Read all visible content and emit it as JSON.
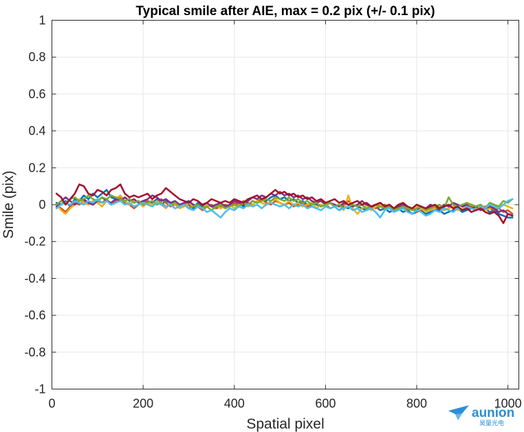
{
  "chart_data": {
    "type": "line",
    "title": "Typical smile after AIE, max = 0.2 pix (+/- 0.1 pix)",
    "xlabel": "Spatial pixel",
    "ylabel": "Smile (pix)",
    "xlim": [
      0,
      1024
    ],
    "ylim": [
      -1,
      1
    ],
    "xticks": [
      0,
      200,
      400,
      600,
      800,
      1000
    ],
    "xtick_labels": [
      "0",
      "200",
      "400",
      "600",
      "800",
      "1000"
    ],
    "yticks": [
      -1,
      -0.8,
      -0.6,
      -0.4,
      -0.2,
      0,
      0.2,
      0.4,
      0.6,
      0.8,
      1
    ],
    "ytick_labels": [
      "-1",
      "-0.8",
      "-0.6",
      "-0.4",
      "-0.2",
      "0",
      "0.2",
      "0.4",
      "0.6",
      "0.8",
      "1"
    ],
    "grid": true,
    "legend": "none",
    "x": [
      10,
      20,
      30,
      40,
      50,
      60,
      70,
      80,
      90,
      100,
      110,
      120,
      130,
      140,
      150,
      160,
      170,
      180,
      190,
      200,
      210,
      220,
      230,
      240,
      250,
      260,
      270,
      280,
      290,
      300,
      310,
      320,
      330,
      340,
      350,
      360,
      370,
      380,
      390,
      400,
      410,
      420,
      430,
      440,
      450,
      460,
      470,
      480,
      490,
      500,
      510,
      520,
      530,
      540,
      550,
      560,
      570,
      580,
      590,
      600,
      610,
      620,
      630,
      640,
      650,
      660,
      670,
      680,
      690,
      700,
      710,
      720,
      730,
      740,
      750,
      760,
      770,
      780,
      790,
      800,
      810,
      820,
      830,
      840,
      850,
      860,
      870,
      880,
      890,
      900,
      910,
      920,
      930,
      940,
      950,
      960,
      970,
      980,
      990,
      1000,
      1010
    ],
    "series": [
      {
        "color": "#0072bd",
        "values": [
          0.01,
          0.0,
          0.02,
          -0.01,
          0.03,
          0.02,
          0.05,
          0.03,
          0.06,
          0.04,
          0.06,
          0.08,
          0.04,
          0.03,
          0.05,
          0.02,
          0.03,
          0.01,
          0.02,
          0.0,
          0.02,
          0.01,
          0.03,
          0.0,
          0.02,
          0.01,
          0.0,
          -0.01,
          0.01,
          0.0,
          -0.02,
          0.01,
          -0.01,
          0.0,
          -0.01,
          -0.02,
          -0.01,
          0.0,
          -0.01,
          0.0,
          0.01,
          -0.01,
          0.0,
          0.02,
          0.01,
          0.03,
          0.02,
          0.04,
          0.05,
          0.03,
          0.04,
          0.02,
          0.03,
          0.01,
          0.02,
          0.0,
          0.01,
          0.0,
          -0.01,
          0.0,
          -0.02,
          -0.01,
          -0.03,
          -0.01,
          -0.02,
          0.0,
          -0.01,
          -0.02,
          -0.03,
          -0.02,
          -0.01,
          -0.03,
          -0.02,
          -0.04,
          -0.03,
          -0.02,
          -0.04,
          -0.03,
          -0.05,
          -0.04,
          -0.03,
          -0.05,
          -0.04,
          -0.02,
          -0.03,
          -0.05,
          -0.04,
          -0.03,
          -0.02,
          -0.04,
          -0.03,
          -0.02,
          -0.01,
          -0.03,
          -0.02,
          -0.04,
          -0.03,
          -0.05,
          -0.06,
          -0.07,
          -0.07
        ]
      },
      {
        "color": "#d95319",
        "values": [
          0.0,
          -0.02,
          -0.04,
          -0.01,
          0.01,
          0.0,
          0.02,
          0.01,
          0.0,
          0.02,
          0.01,
          0.03,
          0.0,
          0.02,
          0.04,
          0.01,
          0.0,
          -0.02,
          0.0,
          0.01,
          0.02,
          0.0,
          0.01,
          0.03,
          0.01,
          -0.01,
          0.0,
          -0.01,
          0.01,
          -0.02,
          0.0,
          -0.01,
          -0.03,
          -0.01,
          0.0,
          -0.02,
          -0.01,
          0.0,
          -0.01,
          0.01,
          0.0,
          0.02,
          0.01,
          0.0,
          0.02,
          0.03,
          0.01,
          0.0,
          0.02,
          0.01,
          0.0,
          0.01,
          -0.01,
          0.0,
          0.01,
          -0.01,
          0.0,
          0.01,
          -0.01,
          0.0,
          0.01,
          0.0,
          -0.01,
          0.0,
          0.02,
          0.0,
          -0.01,
          0.0,
          -0.02,
          -0.01,
          -0.02,
          -0.01,
          0.0,
          -0.02,
          -0.03,
          -0.01,
          -0.02,
          -0.03,
          -0.02,
          -0.04,
          -0.03,
          -0.02,
          -0.03,
          -0.01,
          -0.02,
          -0.03,
          -0.02,
          -0.01,
          -0.02,
          -0.03,
          -0.02,
          -0.01,
          -0.03,
          -0.02,
          -0.01,
          -0.02,
          -0.03,
          -0.02,
          -0.04,
          -0.03,
          -0.05
        ]
      },
      {
        "color": "#edb120",
        "values": [
          0.0,
          -0.03,
          -0.05,
          -0.02,
          0.0,
          0.03,
          0.01,
          0.0,
          0.02,
          0.01,
          -0.01,
          0.02,
          0.01,
          0.03,
          0.05,
          0.02,
          0.0,
          0.02,
          0.01,
          -0.01,
          0.01,
          0.0,
          0.02,
          0.0,
          -0.02,
          0.01,
          0.0,
          -0.02,
          -0.01,
          0.01,
          -0.01,
          0.0,
          -0.02,
          0.0,
          -0.01,
          0.0,
          -0.02,
          -0.01,
          0.0,
          -0.02,
          0.0,
          0.01,
          -0.01,
          0.0,
          0.02,
          0.01,
          0.0,
          0.02,
          0.03,
          0.01,
          0.0,
          0.02,
          0.0,
          0.01,
          -0.01,
          0.0,
          0.01,
          -0.02,
          0.0,
          -0.01,
          0.01,
          -0.01,
          0.0,
          -0.03,
          0.05,
          -0.02,
          -0.05,
          -0.02,
          0.0,
          -0.03,
          -0.01,
          0.0,
          -0.02,
          -0.01,
          -0.03,
          -0.02,
          0.0,
          -0.02,
          -0.03,
          -0.01,
          -0.02,
          -0.04,
          -0.03,
          -0.02,
          -0.01,
          -0.03,
          -0.02,
          -0.01,
          -0.03,
          -0.02,
          -0.01,
          0.0,
          -0.02,
          -0.01,
          -0.03,
          -0.02,
          -0.01,
          -0.02,
          0.0,
          -0.01,
          -0.02
        ]
      },
      {
        "color": "#7e2f8e",
        "values": [
          -0.01,
          0.02,
          0.04,
          0.02,
          0.0,
          0.02,
          0.03,
          0.01,
          0.0,
          0.02,
          0.04,
          0.02,
          0.01,
          0.03,
          0.02,
          0.04,
          0.02,
          0.03,
          0.01,
          0.02,
          0.03,
          0.05,
          0.04,
          0.02,
          0.03,
          0.01,
          0.02,
          0.0,
          0.01,
          0.02,
          0.0,
          -0.01,
          0.0,
          0.01,
          -0.01,
          0.0,
          0.01,
          -0.01,
          0.0,
          0.02,
          0.01,
          0.0,
          0.02,
          0.04,
          0.03,
          0.05,
          0.04,
          0.06,
          0.05,
          0.07,
          0.05,
          0.06,
          0.04,
          0.05,
          0.03,
          0.04,
          0.02,
          0.01,
          0.02,
          0.0,
          0.01,
          0.0,
          -0.01,
          0.01,
          0.0,
          -0.01,
          0.0,
          0.02,
          0.0,
          -0.01,
          0.0,
          0.01,
          -0.01,
          0.0,
          -0.02,
          -0.01,
          0.0,
          -0.01,
          -0.02,
          -0.03,
          -0.01,
          -0.02,
          0.0,
          -0.01,
          -0.02,
          0.0,
          -0.01,
          0.01,
          0.0,
          -0.01,
          0.0,
          -0.02,
          -0.01,
          -0.03,
          -0.02,
          -0.01,
          -0.02,
          -0.04,
          -0.03,
          -0.05,
          -0.06
        ]
      },
      {
        "color": "#77ac30",
        "values": [
          0.0,
          0.02,
          0.01,
          0.03,
          0.04,
          0.02,
          0.03,
          0.05,
          0.03,
          0.02,
          0.04,
          0.03,
          0.05,
          0.04,
          0.03,
          0.02,
          0.03,
          0.01,
          0.02,
          0.0,
          0.01,
          0.02,
          0.0,
          0.01,
          -0.01,
          0.0,
          0.01,
          -0.01,
          0.0,
          -0.02,
          -0.01,
          0.0,
          -0.02,
          -0.01,
          -0.03,
          -0.01,
          0.0,
          -0.02,
          -0.01,
          0.0,
          -0.01,
          0.01,
          0.0,
          0.02,
          0.01,
          0.02,
          0.03,
          0.02,
          0.04,
          0.03,
          0.02,
          0.04,
          0.02,
          0.03,
          0.01,
          0.02,
          0.0,
          0.01,
          -0.01,
          0.0,
          0.01,
          -0.01,
          0.0,
          -0.02,
          -0.01,
          0.0,
          -0.01,
          0.0,
          -0.02,
          -0.01,
          0.0,
          -0.01,
          -0.02,
          -0.01,
          -0.03,
          -0.02,
          -0.01,
          -0.02,
          -0.03,
          -0.02,
          -0.01,
          -0.03,
          -0.02,
          -0.01,
          0.0,
          -0.02,
          0.04,
          0.0,
          -0.01,
          0.0,
          0.01,
          0.0,
          -0.01,
          0.0,
          -0.02,
          0.01,
          0.0,
          -0.01,
          0.02,
          0.01,
          0.03
        ]
      },
      {
        "color": "#4dbeee",
        "values": [
          -0.02,
          0.0,
          0.01,
          0.0,
          0.02,
          0.01,
          0.0,
          0.02,
          0.01,
          0.03,
          0.01,
          0.02,
          0.0,
          0.01,
          0.02,
          0.0,
          0.01,
          -0.01,
          0.0,
          0.01,
          0.0,
          -0.01,
          0.01,
          0.0,
          -0.01,
          0.0,
          -0.02,
          -0.01,
          0.0,
          -0.02,
          -0.03,
          -0.01,
          -0.02,
          -0.04,
          -0.03,
          -0.05,
          -0.07,
          -0.04,
          -0.02,
          -0.03,
          -0.01,
          -0.02,
          0.0,
          -0.01,
          0.0,
          -0.02,
          0.0,
          0.01,
          0.0,
          -0.01,
          0.0,
          -0.02,
          0.0,
          -0.01,
          0.0,
          -0.02,
          -0.01,
          -0.02,
          -0.03,
          -0.01,
          -0.02,
          -0.01,
          -0.03,
          -0.02,
          -0.01,
          -0.03,
          -0.02,
          -0.04,
          -0.03,
          -0.02,
          -0.04,
          -0.07,
          -0.03,
          -0.02,
          -0.04,
          -0.03,
          -0.02,
          -0.04,
          -0.05,
          -0.03,
          -0.04,
          -0.06,
          -0.05,
          -0.03,
          -0.04,
          -0.02,
          -0.03,
          -0.04,
          -0.02,
          -0.03,
          -0.01,
          -0.02,
          -0.03,
          -0.01,
          -0.02,
          0.0,
          -0.01,
          -0.02,
          0.0,
          0.02,
          0.03
        ]
      },
      {
        "color": "#a2142f",
        "values": [
          0.06,
          0.04,
          0.0,
          0.03,
          0.06,
          0.11,
          0.1,
          0.06,
          0.05,
          0.08,
          0.07,
          0.05,
          0.08,
          0.09,
          0.11,
          0.06,
          0.04,
          0.05,
          0.04,
          0.05,
          0.06,
          0.03,
          0.05,
          0.06,
          0.09,
          0.07,
          0.05,
          0.03,
          0.02,
          0.01,
          0.03,
          0.02,
          0.0,
          0.01,
          0.03,
          0.02,
          0.01,
          0.02,
          0.01,
          0.03,
          0.02,
          0.01,
          0.03,
          0.04,
          0.05,
          0.03,
          0.04,
          0.06,
          0.08,
          0.06,
          0.07,
          0.05,
          0.06,
          0.04,
          0.05,
          0.03,
          0.04,
          0.02,
          0.03,
          0.01,
          0.02,
          0.03,
          0.01,
          0.02,
          0.0,
          0.01,
          0.02,
          0.0,
          0.01,
          -0.01,
          0.0,
          0.01,
          -0.01,
          0.0,
          -0.02,
          0.0,
          0.01,
          -0.01,
          -0.02,
          0.0,
          -0.01,
          -0.02,
          -0.01,
          0.0,
          -0.02,
          -0.01,
          0.0,
          -0.02,
          -0.01,
          -0.03,
          -0.02,
          -0.04,
          -0.03,
          -0.02,
          -0.04,
          -0.05,
          -0.04,
          -0.06,
          -0.1,
          -0.05,
          -0.06
        ]
      }
    ]
  }
}
